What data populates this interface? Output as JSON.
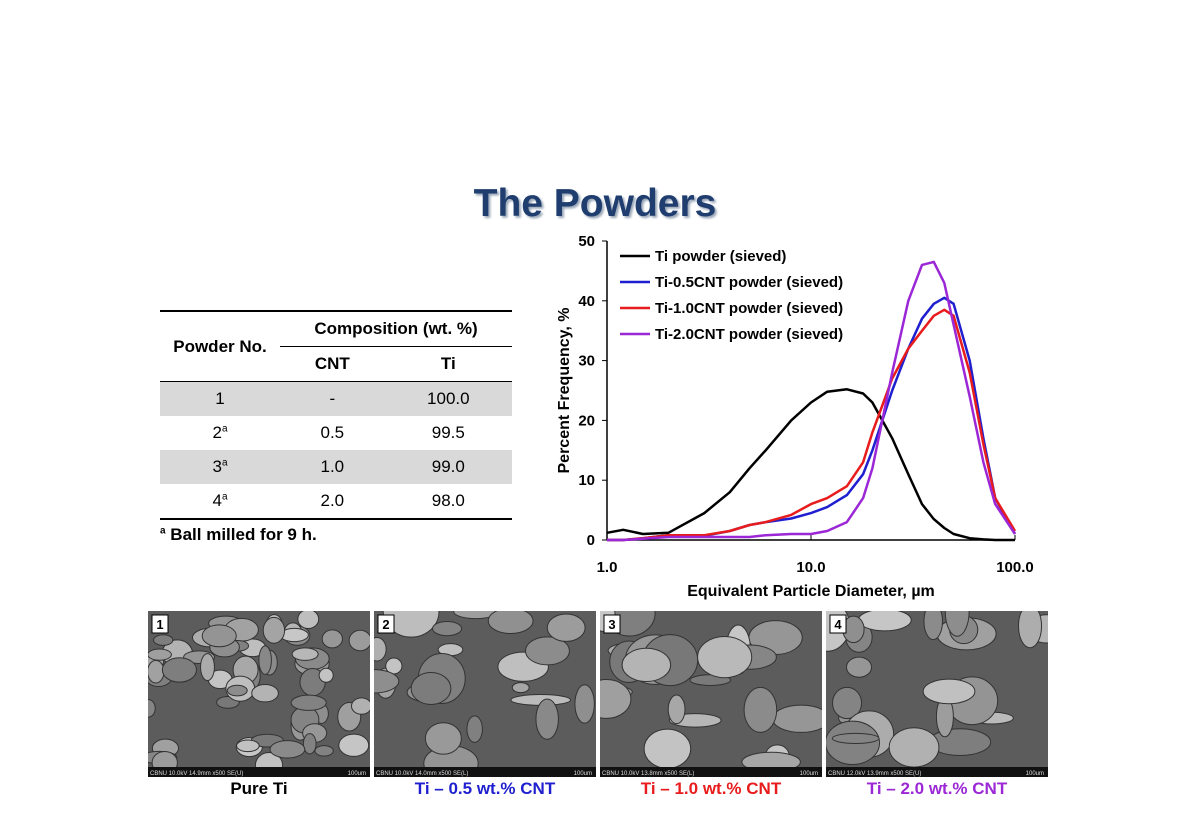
{
  "title": "The Powders",
  "table": {
    "header": {
      "powder": "Powder No.",
      "composition": "Composition (wt. %)",
      "cnt": "CNT",
      "ti": "Ti"
    },
    "rows": [
      {
        "no": "1",
        "cnt": "-",
        "ti": "100.0"
      },
      {
        "no": "2",
        "sup": "a",
        "cnt": "0.5",
        "ti": "99.5"
      },
      {
        "no": "3",
        "sup": "a",
        "cnt": "1.0",
        "ti": "99.0"
      },
      {
        "no": "4",
        "sup": "a",
        "cnt": "2.0",
        "ti": "98.0"
      }
    ],
    "footnote": {
      "sup": "a",
      "text": "Ball milled for 9 h."
    }
  },
  "chart_data": {
    "type": "line",
    "xlabel": "Equivalent Particle Diameter, µm",
    "ylabel": "Percent Frequency, %",
    "xscale": "log",
    "xlim": [
      1,
      100
    ],
    "xticks": [
      {
        "value": 1,
        "label": "1.0"
      },
      {
        "value": 10,
        "label": "10.0"
      },
      {
        "value": 100,
        "label": "100.0"
      }
    ],
    "ylim": [
      0,
      50
    ],
    "yticks": [
      0,
      10,
      20,
      30,
      40,
      50
    ],
    "legend": "upper left",
    "x": [
      1,
      1.2,
      1.5,
      2,
      3,
      4,
      5,
      6,
      8,
      10,
      12,
      15,
      18,
      20,
      25,
      30,
      35,
      40,
      45,
      50,
      60,
      70,
      80,
      100
    ],
    "series": [
      {
        "name": "Ti powder (sieved)",
        "color": "#000000",
        "values": [
          1.2,
          1.7,
          1.0,
          1.2,
          4.5,
          8,
          12,
          15,
          20,
          23,
          24.8,
          25.2,
          24.5,
          23,
          17,
          11,
          6,
          3.5,
          2,
          1,
          0.3,
          0.1,
          0,
          0
        ]
      },
      {
        "name": "Ti-0.5CNT powder (sieved)",
        "color": "#1f1fd0",
        "values": [
          0,
          0,
          0.3,
          0.8,
          0.7,
          1.5,
          2.5,
          3,
          3.6,
          4.5,
          5.5,
          7.5,
          11,
          15,
          25,
          32,
          37,
          39.5,
          40.5,
          39.5,
          30,
          17,
          7,
          1
        ]
      },
      {
        "name": "Ti-1.0CNT powder (sieved)",
        "color": "#e81c1c",
        "values": [
          0,
          0,
          0.3,
          0.8,
          0.8,
          1.5,
          2.5,
          3,
          4.2,
          6,
          7,
          9,
          13,
          18,
          27,
          32,
          35,
          37.5,
          38.5,
          37.5,
          28,
          16,
          7,
          1.5
        ]
      },
      {
        "name": "Ti-2.0CNT powder (sieved)",
        "color": "#9b27d6",
        "values": [
          0,
          0,
          0.2,
          0.5,
          0.5,
          0.5,
          0.5,
          0.8,
          1,
          1,
          1.5,
          3,
          7,
          12,
          28,
          40,
          46,
          46.5,
          43,
          36,
          24,
          13,
          6,
          1
        ]
      }
    ]
  },
  "images": [
    {
      "number": "1",
      "info": "CBNU 10.0kV 14.9mm x500 SE(U)",
      "scale": "100um",
      "caption": "Pure Ti",
      "color": "#000000"
    },
    {
      "number": "2",
      "info": "CBNU 10.0kV 14.0mm x500 SE(L)",
      "scale": "100um",
      "caption": "Ti – 0.5 wt.%  CNT",
      "color": "#1f1fd0"
    },
    {
      "number": "3",
      "info": "CBNU 10.0kV 13.8mm x500 SE(L)",
      "scale": "100um",
      "caption": "Ti – 1.0 wt.%  CNT",
      "color": "#e81c1c"
    },
    {
      "number": "4",
      "info": "CBNU 12.0kV 13.9mm x500 SE(U)",
      "scale": "100um",
      "caption": "Ti – 2.0 wt.%  CNT",
      "color": "#9b27d6"
    }
  ]
}
